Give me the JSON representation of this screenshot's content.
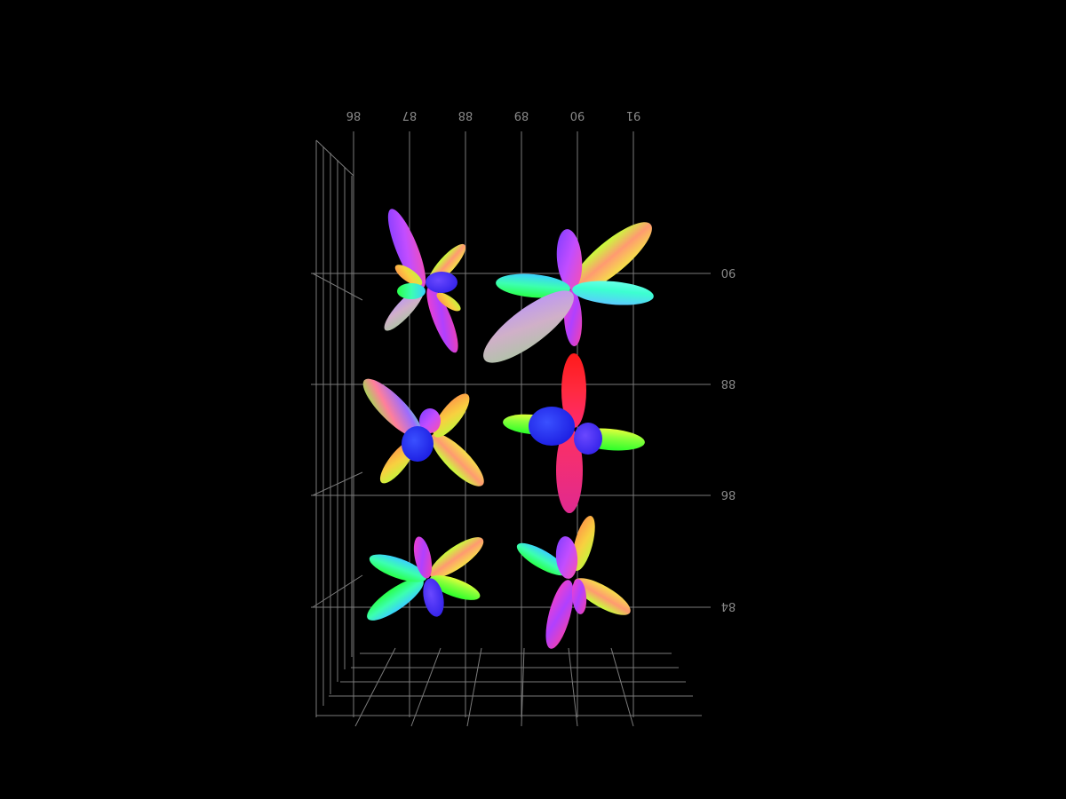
{
  "scene": {
    "background": "#000000",
    "grid_color": "#7a7a7a",
    "tick_label_color": "#8a8a8a",
    "mirrored_labels": true
  },
  "axes": {
    "top_ticks": [
      "86",
      "87",
      "88",
      "89",
      "90",
      "91"
    ],
    "right_ticks": [
      "90",
      "88",
      "86",
      "84"
    ]
  },
  "glyphs": {
    "type": "fiber-odf",
    "count": 6,
    "color_scheme": "direction-encoded RGB",
    "items": [
      {
        "id": "odf-top-left",
        "lobes": 4
      },
      {
        "id": "odf-top-right",
        "lobes": 5
      },
      {
        "id": "odf-middle-left",
        "lobes": 4
      },
      {
        "id": "odf-middle-right",
        "lobes": 5
      },
      {
        "id": "odf-bottom-left",
        "lobes": 4
      },
      {
        "id": "odf-bottom-right",
        "lobes": 5
      }
    ]
  }
}
